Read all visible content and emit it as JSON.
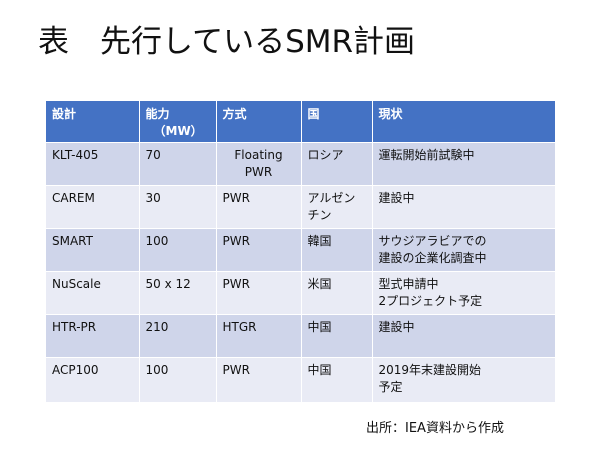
{
  "title": "表　先行しているSMR計画",
  "table": {
    "headers": {
      "design": "設計",
      "capacity": "能力",
      "capacity_unit": "（MW）",
      "method": "方式",
      "country": "国",
      "status": "現状"
    },
    "rows": [
      {
        "design": "KLT-405",
        "capacity": "70",
        "method": "Floating\nPWR",
        "country": "ロシア",
        "status": "運転開始前試験中"
      },
      {
        "design": "CAREM",
        "capacity": "30",
        "method": "PWR",
        "country": "アルゼン\nチン",
        "status": "建設中"
      },
      {
        "design": "SMART",
        "capacity": "100",
        "method": "PWR",
        "country": "韓国",
        "status": "サウジアラビアでの\n建設の企業化調査中"
      },
      {
        "design": "NuScale",
        "capacity": "50 x 12",
        "method": "PWR",
        "country": "米国",
        "status": "型式申請中\n2プロジェクト予定"
      },
      {
        "design": "HTR-PR",
        "capacity": "210",
        "method": "HTGR",
        "country": "中国",
        "status": "建設中"
      },
      {
        "design": "ACP100",
        "capacity": "100",
        "method": "PWR",
        "country": "中国",
        "status": "2019年末建設開始\n予定"
      }
    ]
  },
  "source": "出所：IEA資料から作成",
  "colors": {
    "header_bg": "#4472c4",
    "row_odd": "#cfd5ea",
    "row_even": "#e9ebf5"
  }
}
